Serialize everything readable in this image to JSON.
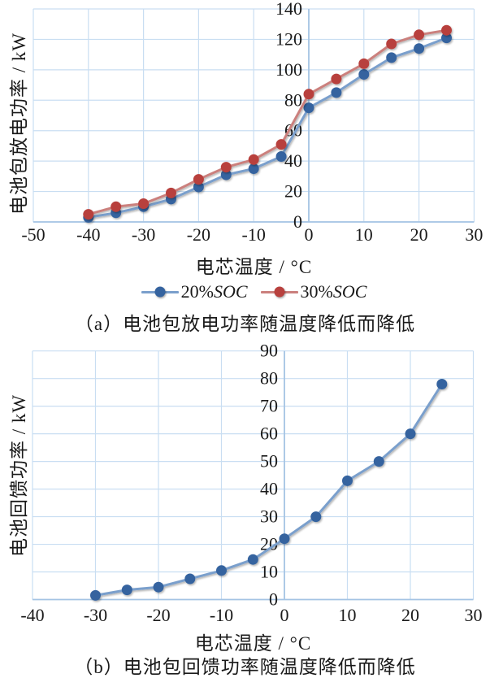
{
  "page": {
    "background": "#ffffff",
    "text_color": "#1a1a1a"
  },
  "chart_data": [
    {
      "id": "a",
      "type": "line",
      "xlabel": "电芯温度 / °C",
      "ylabel": "电池包放电功率 / kW",
      "caption": "（a）电池包放电功率随温度降低而降低",
      "xlim": [
        -50,
        30
      ],
      "ylim": [
        0,
        140
      ],
      "xticks": [
        -50,
        -40,
        -30,
        -20,
        -10,
        0,
        10,
        20,
        30
      ],
      "yticks": [
        0,
        20,
        40,
        60,
        80,
        100,
        120,
        140
      ],
      "grid": true,
      "grid_color": "#c9def2",
      "axis_color": "#a5c4e4",
      "legend_position": "bottom",
      "x": [
        -40,
        -35,
        -30,
        -25,
        -20,
        -15,
        -10,
        -5,
        0,
        5,
        10,
        15,
        20,
        25
      ],
      "series": [
        {
          "name": "20%SOC",
          "name_prefix": "20%",
          "name_suffix": "SOC",
          "line_color": "#7a9fcc",
          "marker_color": "#35639f",
          "values": [
            3,
            6,
            10,
            15,
            23,
            31,
            35,
            43,
            75,
            85,
            97,
            108,
            114,
            121
          ]
        },
        {
          "name": "30%SOC",
          "name_prefix": "30%",
          "name_suffix": "SOC",
          "line_color": "#cb807d",
          "marker_color": "#b8413e",
          "values": [
            5,
            10,
            12,
            19,
            28,
            36,
            41,
            51,
            84,
            94,
            104,
            117,
            123,
            126
          ]
        }
      ]
    },
    {
      "id": "b",
      "type": "line",
      "xlabel": "电芯温度 / °C",
      "ylabel": "电池回馈功率 / kW",
      "caption": "（b）电池包回馈功率随温度降低而降低",
      "xlim": [
        -40,
        30
      ],
      "ylim": [
        0,
        90
      ],
      "xticks": [
        -40,
        -30,
        -20,
        -10,
        0,
        10,
        20,
        30
      ],
      "yticks": [
        0,
        10,
        20,
        30,
        40,
        50,
        60,
        70,
        80,
        90
      ],
      "grid": true,
      "grid_color": "#c9def2",
      "axis_color": "#a5c4e4",
      "legend_position": "none",
      "x": [
        -30,
        -25,
        -20,
        -15,
        -10,
        -5,
        0,
        5,
        10,
        15,
        20,
        25
      ],
      "series": [
        {
          "name": "回馈功率",
          "line_color": "#7a9fcc",
          "marker_color": "#35639f",
          "values": [
            1.5,
            3.5,
            4.5,
            7.5,
            10.5,
            14.5,
            22,
            30,
            43,
            50,
            60,
            78
          ]
        }
      ]
    }
  ]
}
